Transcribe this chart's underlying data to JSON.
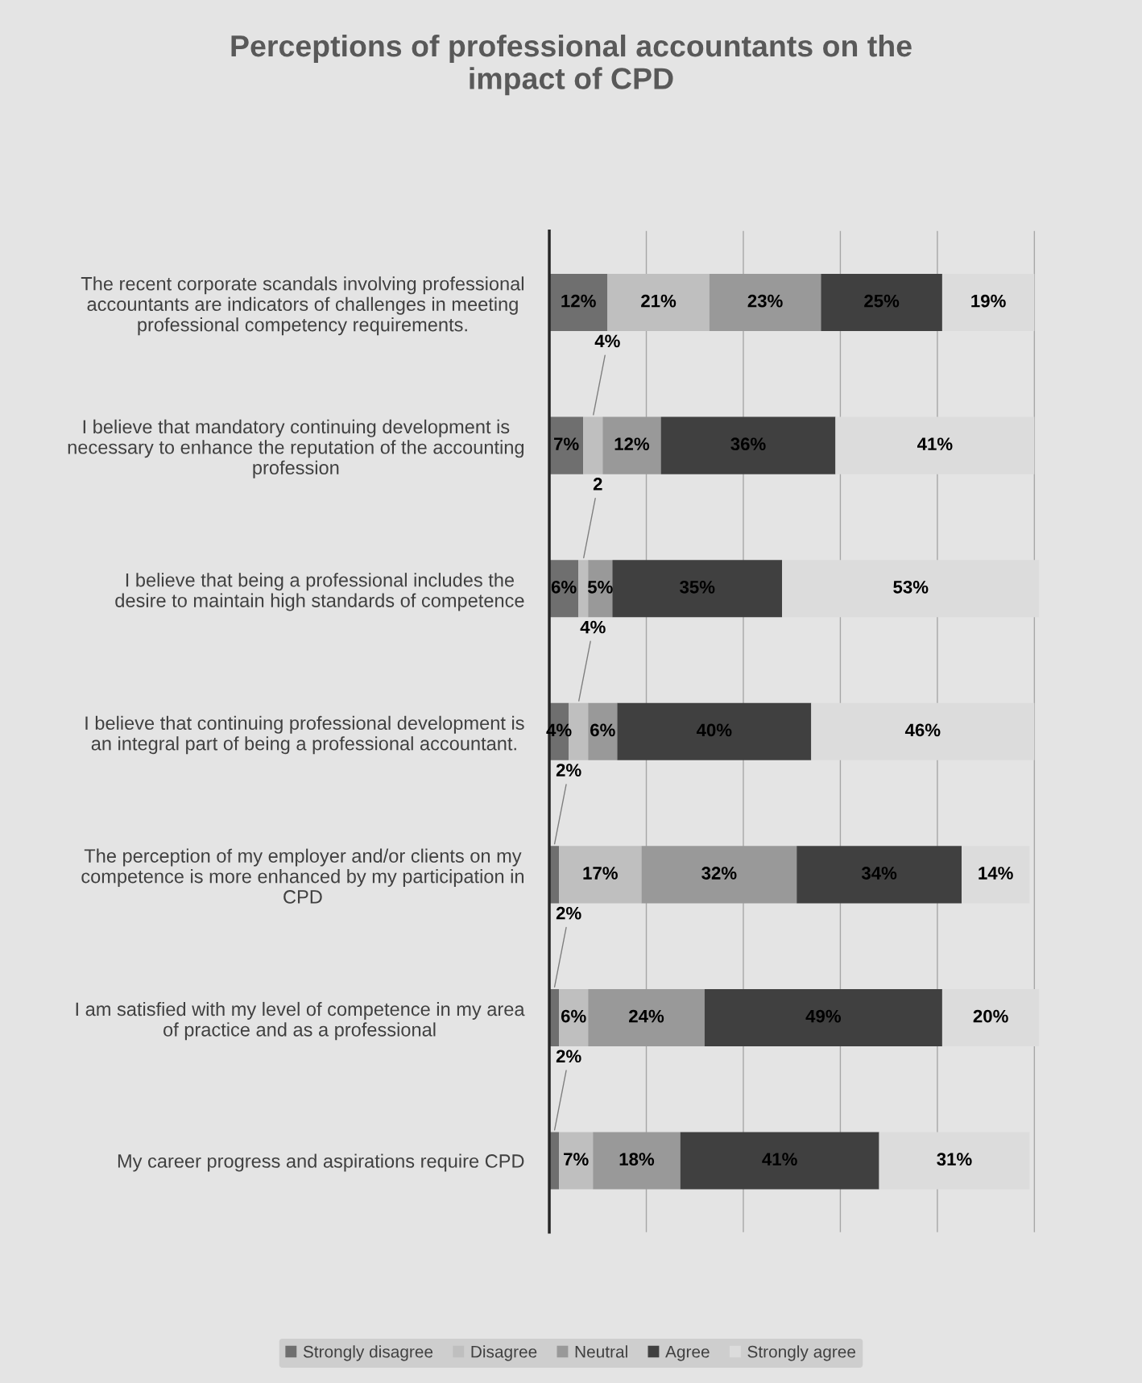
{
  "chart_data": {
    "type": "bar",
    "orientation": "horizontal",
    "stacked": true,
    "title": "Perceptions of professional accountants on the impact of CPD",
    "categories": [
      "The recent corporate scandals involving professional accountants are indicators of challenges in meeting professional competency requirements.",
      "I believe that mandatory continuing development is necessary to enhance the reputation of the accounting profession",
      "I believe that being a professional includes the desire to maintain high standards of competence",
      "I believe that continuing professional development is an integral part of being a professional accountant.",
      "The perception of my employer and/or clients on my competence is more enhanced by my participation in CPD",
      "I am satisfied with my level of competence in my area of practice and as a professional",
      "My career progress and aspirations require CPD"
    ],
    "series": [
      {
        "name": "Strongly disagree",
        "color": "#6f6f6f",
        "values": [
          12,
          7,
          6,
          4,
          2,
          2,
          2
        ],
        "value_labels": [
          "12%",
          "7%",
          "6%",
          "4%",
          "2%",
          "2%",
          "2%"
        ]
      },
      {
        "name": "Disagree",
        "color": "#bfbfbf",
        "values": [
          21,
          4,
          2,
          4,
          17,
          6,
          7
        ],
        "value_labels": [
          "21%",
          "4%",
          "2",
          "4%",
          "17%",
          "6%",
          "7%"
        ]
      },
      {
        "name": "Neutral",
        "color": "#999999",
        "values": [
          23,
          12,
          5,
          6,
          32,
          24,
          18
        ],
        "value_labels": [
          "23%",
          "12%",
          "5%",
          "6%",
          "32%",
          "24%",
          "18%"
        ]
      },
      {
        "name": "Agree",
        "color": "#404040",
        "values": [
          25,
          36,
          35,
          40,
          34,
          49,
          41
        ],
        "value_labels": [
          "25%",
          "36%",
          "35%",
          "40%",
          "34%",
          "49%",
          "41%"
        ]
      },
      {
        "name": "Strongly agree",
        "color": "#dcdcdc",
        "values": [
          19,
          41,
          53,
          46,
          14,
          20,
          31
        ],
        "value_labels": [
          "19%",
          "41%",
          "53%",
          "46%",
          "14%",
          "20%",
          "31%"
        ]
      }
    ],
    "xlim": [
      0,
      101
    ],
    "xticks": [
      {
        "value": 0,
        "label": null
      },
      {
        "value": 20,
        "label": null
      },
      {
        "value": 40,
        "label": null
      },
      {
        "value": 60,
        "label": null
      },
      {
        "value": 80,
        "label": null
      },
      {
        "value": 100,
        "label": null
      }
    ],
    "tick_labels": "y",
    "grid": "x",
    "legend": "bottom"
  }
}
